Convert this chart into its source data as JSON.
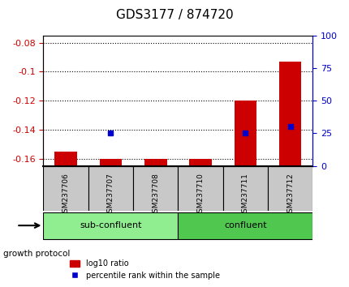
{
  "title": "GDS3177 / 874720",
  "samples": [
    "GSM237706",
    "GSM237707",
    "GSM237708",
    "GSM237710",
    "GSM237711",
    "GSM237712"
  ],
  "log10_ratio": [
    -0.155,
    -0.16,
    -0.16,
    -0.16,
    -0.12,
    -0.093
  ],
  "percentile_rank": [
    null,
    25,
    null,
    null,
    25,
    30
  ],
  "ylim_left": [
    -0.165,
    -0.075
  ],
  "ylim_right": [
    0,
    100
  ],
  "yticks_left": [
    -0.16,
    -0.14,
    -0.12,
    -0.1,
    -0.08
  ],
  "yticks_right": [
    0,
    25,
    50,
    75,
    100
  ],
  "groups": [
    {
      "label": "sub-confluent",
      "samples": [
        "GSM237706",
        "GSM237707",
        "GSM237708"
      ],
      "color": "#90EE90"
    },
    {
      "label": "confluent",
      "samples": [
        "GSM237710",
        "GSM237711",
        "GSM237712"
      ],
      "color": "#50C850"
    }
  ],
  "bar_color": "#CC0000",
  "dot_color": "#0000CC",
  "bar_width": 0.5,
  "grid_color": "#000000",
  "background_color": "#FFFFFF",
  "xlabel_color": "#000000",
  "left_axis_color": "#CC0000",
  "right_axis_color": "#0000CC",
  "legend_bar_label": "log10 ratio",
  "legend_dot_label": "percentile rank within the sample",
  "growth_protocol_label": "growth protocol",
  "ytick_fontsize": 8,
  "title_fontsize": 11
}
